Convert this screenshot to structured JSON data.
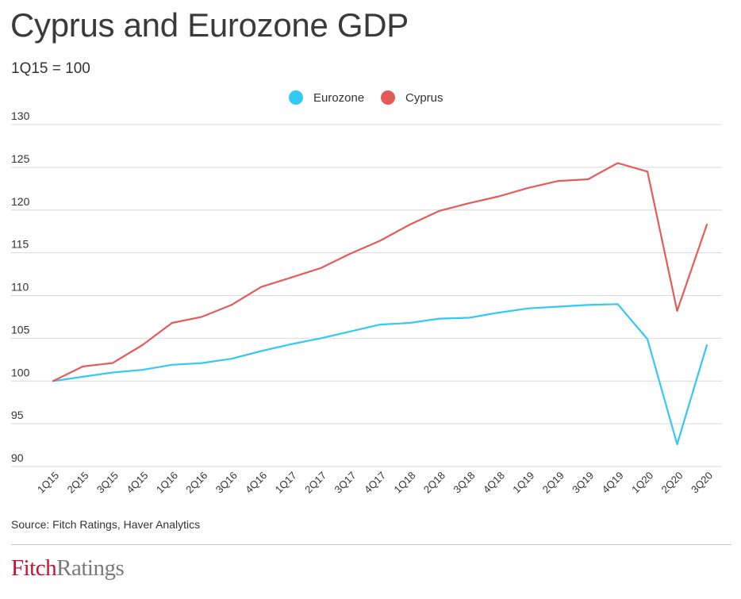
{
  "header": {
    "title": "Cyprus and Eurozone GDP",
    "subtitle": "1Q15 = 100"
  },
  "footer": {
    "source": "Source: Fitch Ratings, Haver Analytics",
    "logo_part1": "Fitch",
    "logo_part2": "Ratings"
  },
  "colors": {
    "eurozone": "#33c9f5",
    "cyprus": "#e35c59",
    "grid": "#d9d9d9"
  },
  "chart_data": {
    "type": "line",
    "title": "Cyprus and Eurozone GDP",
    "subtitle": "1Q15 = 100",
    "xlabel": "",
    "ylabel": "",
    "ylim": [
      90,
      130
    ],
    "yticks": [
      90,
      95,
      100,
      105,
      110,
      115,
      120,
      125,
      130
    ],
    "grid": true,
    "legend_position": "top-center",
    "categories": [
      "1Q15",
      "2Q15",
      "3Q15",
      "4Q15",
      "1Q16",
      "2Q16",
      "3Q16",
      "4Q16",
      "1Q17",
      "2Q17",
      "3Q17",
      "4Q17",
      "1Q18",
      "2Q18",
      "3Q18",
      "4Q18",
      "1Q19",
      "2Q19",
      "3Q19",
      "4Q19",
      "1Q20",
      "2Q20",
      "3Q20"
    ],
    "series": [
      {
        "name": "Eurozone",
        "color": "#33c9f5",
        "values": [
          100.0,
          100.5,
          101.0,
          101.3,
          101.9,
          102.1,
          102.6,
          103.5,
          104.3,
          105.0,
          105.8,
          106.6,
          106.8,
          107.3,
          107.4,
          108.0,
          108.5,
          108.7,
          108.9,
          109.0,
          104.9,
          92.6,
          104.2
        ]
      },
      {
        "name": "Cyprus",
        "color": "#e35c59",
        "values": [
          100.0,
          101.7,
          102.1,
          104.2,
          106.8,
          107.5,
          108.9,
          111.0,
          112.1,
          113.2,
          114.9,
          116.4,
          118.3,
          119.9,
          120.8,
          121.6,
          122.6,
          123.4,
          123.6,
          125.5,
          124.5,
          108.2,
          118.3
        ]
      }
    ]
  }
}
